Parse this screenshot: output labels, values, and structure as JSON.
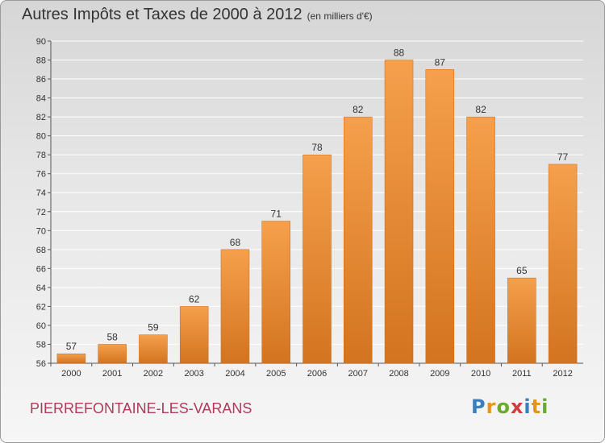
{
  "chart_data": {
    "type": "bar",
    "title": "Autres Impôts et Taxes de 2000 à 2012",
    "subtitle": "(en milliers d'€)",
    "categories": [
      "2000",
      "2001",
      "2002",
      "2003",
      "2004",
      "2005",
      "2006",
      "2007",
      "2008",
      "2009",
      "2010",
      "2011",
      "2012"
    ],
    "values": [
      57,
      58,
      59,
      62,
      68,
      71,
      78,
      82,
      88,
      87,
      82,
      65,
      77
    ],
    "ylim": [
      56,
      90
    ],
    "ytick_step": 2,
    "grid": true,
    "colors": {
      "bar": "#f5a04c",
      "bar_dark": "#d3741f",
      "grid": "#ffffff",
      "axis": "#555555"
    }
  },
  "footer": {
    "place": "PIERREFONTAINE-LES-VARANS",
    "logo_letters": [
      "P",
      "r",
      "o",
      "x",
      "i",
      "t",
      "i"
    ],
    "logo_colors": [
      "#3a7fc0",
      "#e0961a",
      "#6aab2a",
      "#d23c3c",
      "#3a7fc0",
      "#e0961a",
      "#6aab2a"
    ]
  }
}
